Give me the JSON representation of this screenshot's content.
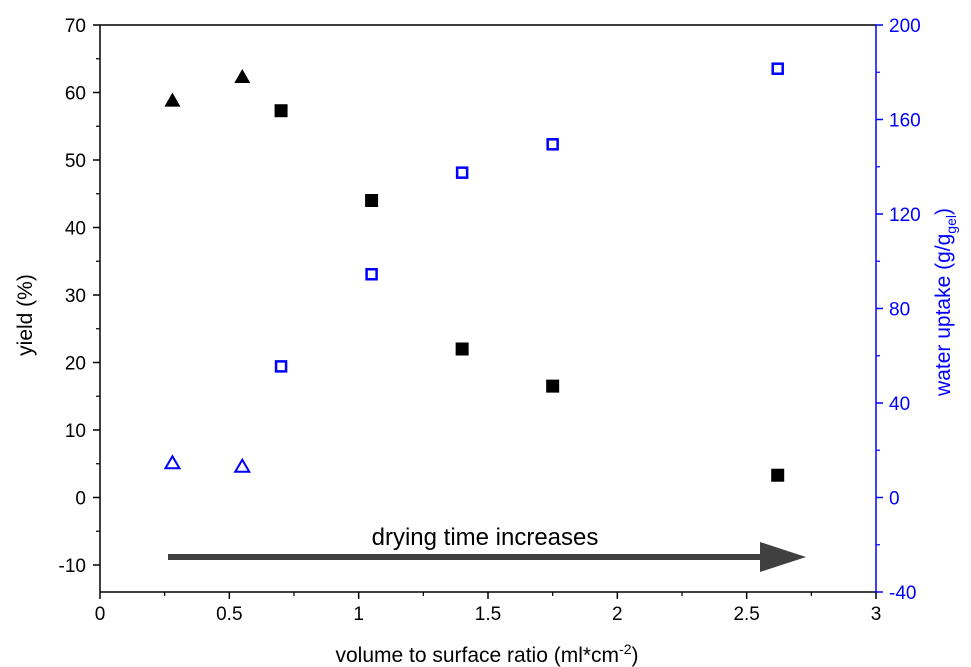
{
  "chart_data": {
    "type": "scatter",
    "xlabel": "volume to surface ratio (ml*cm",
    "xlabel_sup": "-2",
    "xlabel_end": ")",
    "ylabel": "yield (%)",
    "y2label": "water uptake (g/g",
    "y2label_sub": "gel",
    "y2label_end": ")",
    "xlim": [
      0,
      3
    ],
    "ylim": [
      -14,
      70
    ],
    "y2lim": [
      -40,
      200
    ],
    "x_ticks": [
      0,
      0.5,
      1,
      1.5,
      2,
      2.5,
      3
    ],
    "x_tick_labels": [
      "0",
      "0.5",
      "1",
      "1.5",
      "2",
      "2.5",
      "3"
    ],
    "y_ticks": [
      -10,
      0,
      10,
      20,
      30,
      40,
      50,
      60,
      70
    ],
    "y_tick_labels": [
      "-10",
      "0",
      "10",
      "20",
      "30",
      "40",
      "50",
      "60",
      "70"
    ],
    "y2_ticks": [
      -40,
      0,
      40,
      80,
      120,
      160,
      200
    ],
    "y2_tick_labels": [
      "-40",
      "0",
      "40",
      "80",
      "120",
      "160",
      "200"
    ],
    "annotation": "drying time increases",
    "colors": {
      "left_axis": "#000000",
      "right_axis": "#0000ff",
      "arrow": "#404040"
    },
    "series": [
      {
        "axis": "left",
        "marker": "triangle-filled",
        "color": "#000000",
        "x": [
          0.28,
          0.55
        ],
        "y": [
          58.8,
          62.3
        ]
      },
      {
        "axis": "left",
        "marker": "square-filled",
        "color": "#000000",
        "x": [
          0.7,
          1.05,
          1.4,
          1.75,
          2.62
        ],
        "y": [
          57.3,
          44.0,
          22.0,
          16.5,
          3.3
        ]
      },
      {
        "axis": "right",
        "marker": "triangle-open",
        "color": "#0000ff",
        "x": [
          0.28,
          0.55
        ],
        "y": [
          14.5,
          13.0
        ]
      },
      {
        "axis": "right",
        "marker": "square-open",
        "color": "#0000ff",
        "x": [
          0.7,
          1.05,
          1.4,
          1.75,
          2.62
        ],
        "y": [
          55.5,
          94.5,
          137.5,
          149.5,
          181.5
        ]
      }
    ]
  }
}
